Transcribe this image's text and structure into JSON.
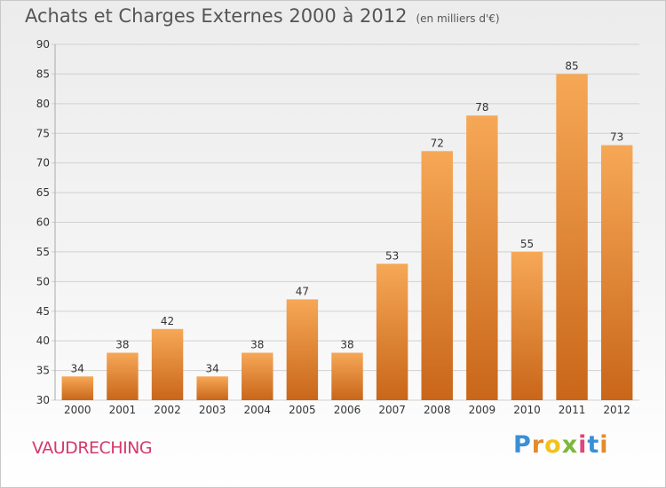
{
  "header": {
    "title": "Achats et Charges Externes 2000 à 2012",
    "unit": "(en milliers d'€)"
  },
  "footer": {
    "town": "VAUDRECHING",
    "brand": "Proxiti"
  },
  "colors": {
    "bar_top": "#f6a856",
    "bar_bottom": "#c9661a",
    "grid": "#d0d0d0",
    "axis_text": "#333333",
    "town_text": "#d43a6a"
  },
  "chart_data": {
    "type": "bar",
    "categories": [
      "2000",
      "2001",
      "2002",
      "2003",
      "2004",
      "2005",
      "2006",
      "2007",
      "2008",
      "2009",
      "2010",
      "2011",
      "2012"
    ],
    "values": [
      34,
      38,
      42,
      34,
      38,
      47,
      38,
      53,
      72,
      78,
      55,
      85,
      73
    ],
    "data_labels": [
      "34",
      "38",
      "42",
      "34",
      "38",
      "47",
      "38",
      "53",
      "72",
      "78",
      "55",
      "85",
      "73"
    ],
    "ylim": [
      30,
      90
    ],
    "yticks": [
      30,
      35,
      40,
      45,
      50,
      55,
      60,
      65,
      70,
      75,
      80,
      85,
      90
    ],
    "grid": true,
    "xlabel": "",
    "ylabel": ""
  }
}
